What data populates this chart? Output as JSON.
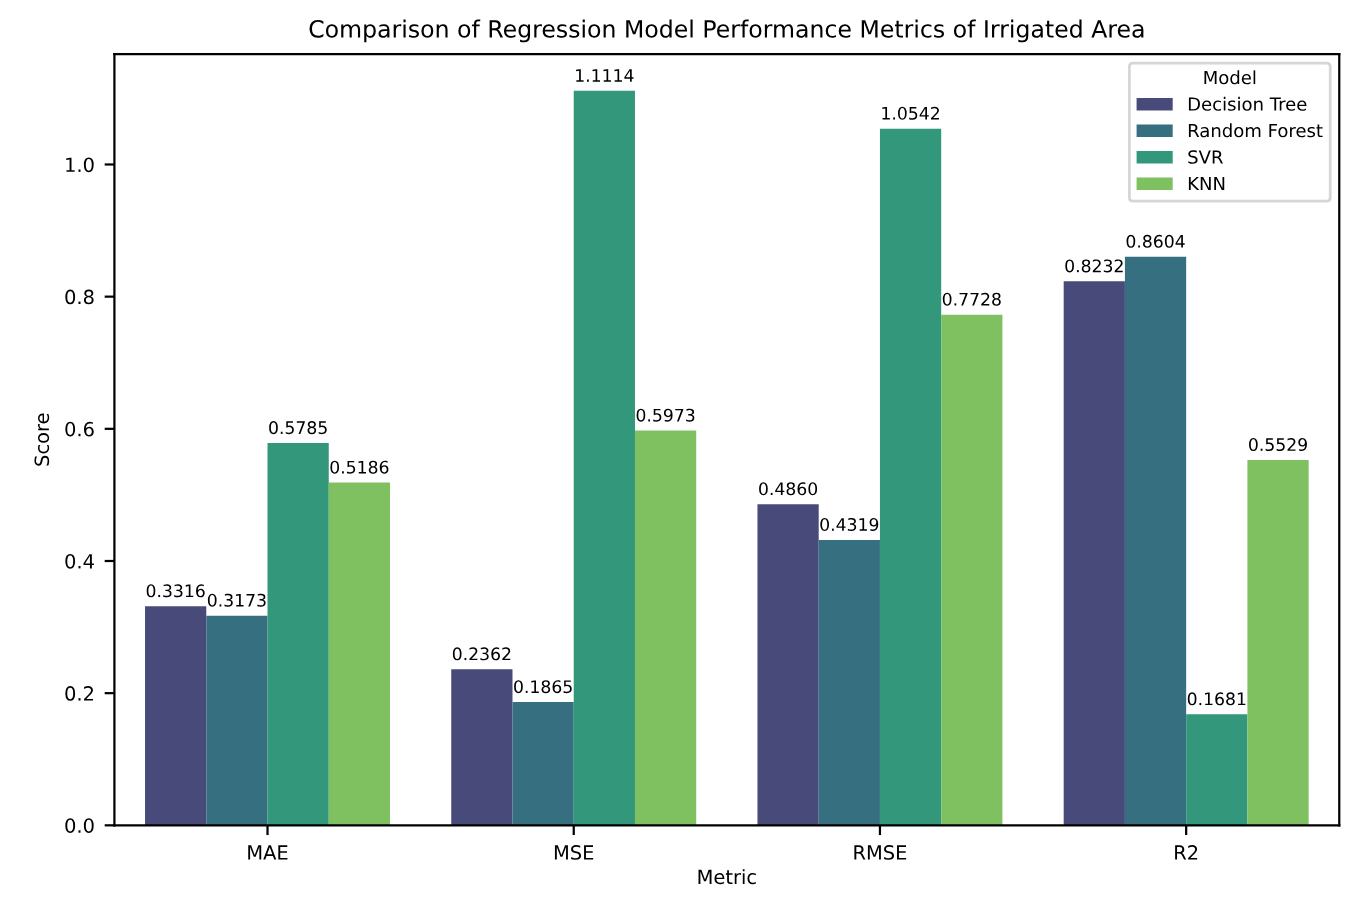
{
  "chart_data": {
    "type": "bar",
    "title": "Comparison of Regression Model Performance Metrics of Irrigated Area",
    "xlabel": "Metric",
    "ylabel": "Score",
    "legend_title": "Model",
    "legend": "top right",
    "categories": [
      "MAE",
      "MSE",
      "RMSE",
      "R2"
    ],
    "ylim": [
      0,
      1.167
    ],
    "yticks": [
      {
        "value": 0,
        "label": "0.0"
      },
      {
        "value": 0.2,
        "label": "0.2"
      },
      {
        "value": 0.4,
        "label": "0.4"
      },
      {
        "value": 0.6,
        "label": "0.6"
      },
      {
        "value": 0.8,
        "label": "0.8"
      },
      {
        "value": 1,
        "label": "1.0"
      }
    ],
    "series": [
      {
        "name": "Decision Tree",
        "color": "#484a7a",
        "values": [
          0.3316,
          0.2362,
          0.486,
          0.8232
        ],
        "value_labels": [
          "0.3316",
          "0.2362",
          "0.4860",
          "0.8232"
        ]
      },
      {
        "name": "Random Forest",
        "color": "#366f80",
        "values": [
          0.3173,
          0.1865,
          0.4319,
          0.8604
        ],
        "value_labels": [
          "0.3173",
          "0.1865",
          "0.4319",
          "0.8604"
        ]
      },
      {
        "name": "SVR",
        "color": "#33977b",
        "values": [
          0.5785,
          1.1114,
          1.0542,
          0.1681
        ],
        "value_labels": [
          "0.5785",
          "1.1114",
          "1.0542",
          "0.1681"
        ]
      },
      {
        "name": "KNN",
        "color": "#7fc060",
        "values": [
          0.5186,
          0.5973,
          0.7728,
          0.5529
        ],
        "value_labels": [
          "0.5186",
          "0.5973",
          "0.7728",
          "0.5529"
        ]
      }
    ]
  }
}
